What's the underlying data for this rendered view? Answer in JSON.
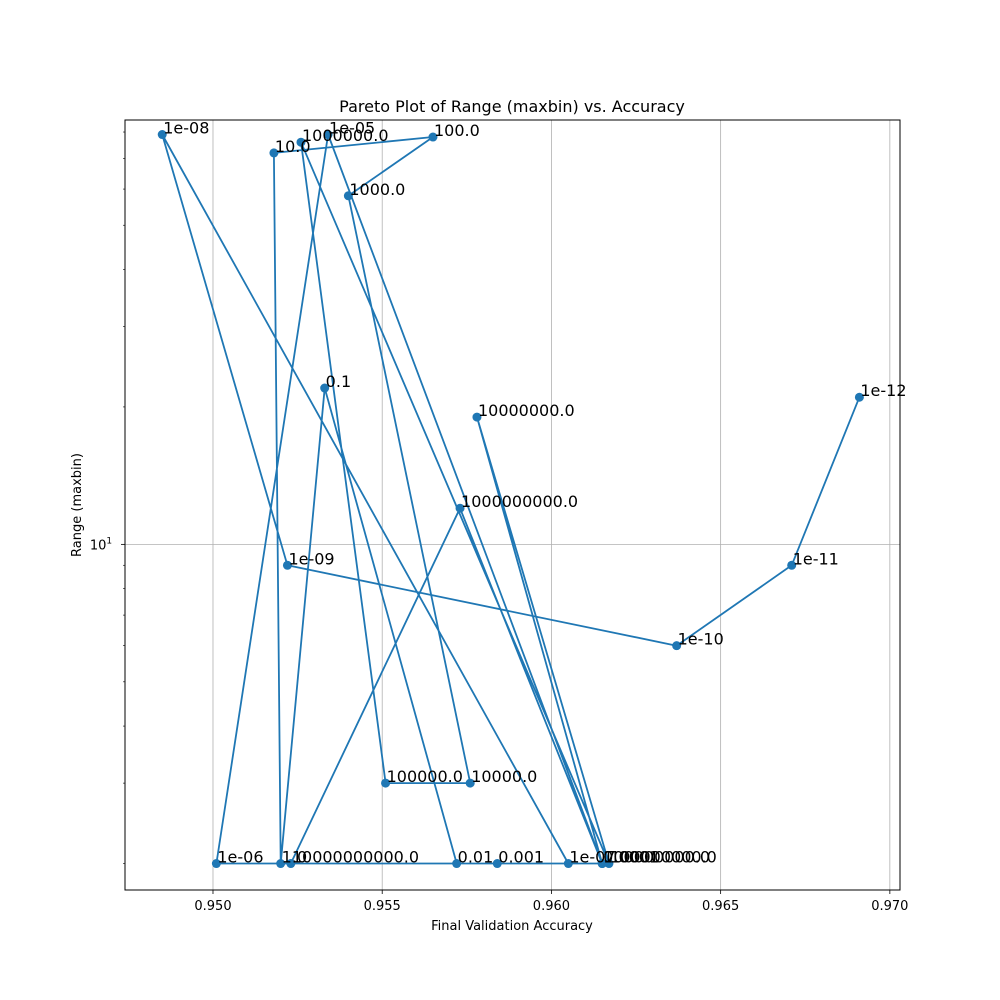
{
  "chart_data": {
    "type": "line",
    "title": "Pareto Plot of Range (maxbin) vs. Accuracy",
    "xlabel": "Final Validation Accuracy",
    "ylabel": "Range (maxbin)",
    "xlim": [
      0.9474,
      0.9703
    ],
    "ylim": [
      1.75,
      85
    ],
    "yscale": "log",
    "grid": true,
    "color": "#1f77b4",
    "x_ticks": [
      {
        "value": 0.95,
        "label": "0.950"
      },
      {
        "value": 0.955,
        "label": "0.955"
      },
      {
        "value": 0.96,
        "label": "0.960"
      },
      {
        "value": 0.965,
        "label": "0.965"
      },
      {
        "value": 0.97,
        "label": "0.970"
      }
    ],
    "y_major_ticks": [
      {
        "value": 10,
        "base": "10",
        "exp": "1"
      }
    ],
    "y_minor_ticks": [
      2,
      3,
      4,
      5,
      6,
      7,
      8,
      9,
      20,
      30,
      40,
      50,
      60,
      70,
      80
    ],
    "series": [
      {
        "points": [
          {
            "x": 0.9691,
            "y": 21,
            "label": "1e-12"
          },
          {
            "x": 0.9671,
            "y": 9,
            "label": "1e-11"
          },
          {
            "x": 0.9637,
            "y": 6,
            "label": "1e-10"
          },
          {
            "x": 0.9522,
            "y": 9,
            "label": "1e-09"
          },
          {
            "x": 0.9485,
            "y": 79,
            "label": "1e-08"
          },
          {
            "x": 0.9605,
            "y": 2,
            "label": "1e-07"
          },
          {
            "x": 0.9501,
            "y": 2,
            "label": "1e-06"
          },
          {
            "x": 0.9534,
            "y": 79,
            "label": "1e-05"
          },
          {
            "x": 0.9615,
            "y": 2,
            "label": "0.0001"
          },
          {
            "x": 0.9584,
            "y": 2,
            "label": "0.001"
          },
          {
            "x": 0.9572,
            "y": 2,
            "label": "0.01"
          },
          {
            "x": 0.9533,
            "y": 22,
            "label": "0.1"
          },
          {
            "x": 0.952,
            "y": 2,
            "label": "1.0"
          },
          {
            "x": 0.9518,
            "y": 72,
            "label": "10.0"
          },
          {
            "x": 0.9565,
            "y": 78,
            "label": "100.0"
          },
          {
            "x": 0.954,
            "y": 58,
            "label": "1000.0"
          },
          {
            "x": 0.9576,
            "y": 3,
            "label": "10000.0"
          },
          {
            "x": 0.9551,
            "y": 3,
            "label": "100000.0"
          },
          {
            "x": 0.9526,
            "y": 76,
            "label": "1000000.0"
          },
          {
            "x": 0.9617,
            "y": 2,
            "label": "100000000.0"
          },
          {
            "x": 0.9578,
            "y": 19,
            "label": "10000000.0"
          },
          {
            "x": 0.9615,
            "y": 2,
            "label": "100000000.0"
          },
          {
            "x": 0.9573,
            "y": 12,
            "label": "1000000000.0"
          },
          {
            "x": 0.9523,
            "y": 2,
            "label": "10000000000.0"
          }
        ]
      }
    ]
  }
}
